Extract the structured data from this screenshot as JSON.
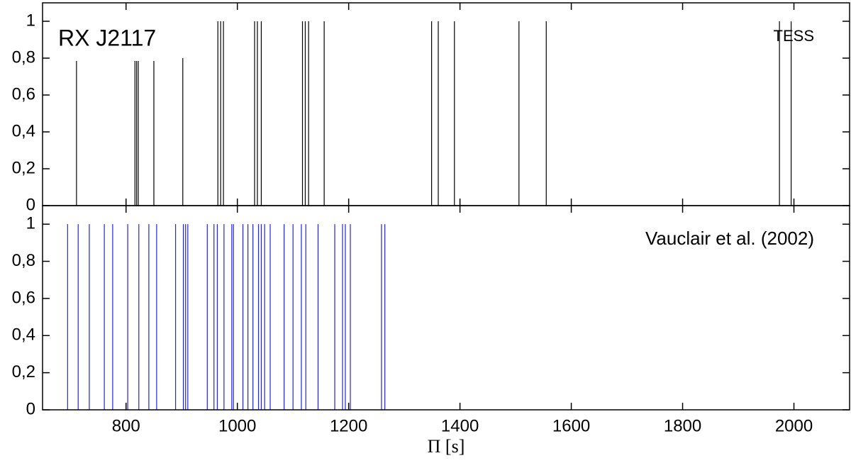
{
  "chart_data": [
    {
      "type": "stem",
      "panel_label": "RX J2117",
      "source": "TESS",
      "x": [
        711,
        816,
        819,
        822,
        850,
        902,
        965,
        970,
        975,
        1031,
        1036,
        1043,
        1117,
        1122,
        1128,
        1156,
        1349,
        1361,
        1390,
        1506,
        1555,
        1974,
        1995
      ],
      "values": [
        0.8,
        0.8,
        0.8,
        0.8,
        0.8,
        0.8,
        1,
        1,
        1,
        1,
        1,
        1,
        1,
        1,
        1,
        1,
        1,
        1,
        1,
        1,
        1,
        1,
        1
      ],
      "color": "#000000",
      "xlim": [
        650,
        2100
      ],
      "ylim": [
        0,
        1.1
      ],
      "xticks": [
        800,
        1000,
        1200,
        1400,
        1600,
        1800,
        2000
      ],
      "yticks": [
        0,
        {
          "value": 0.2,
          "label": "0,2"
        },
        {
          "value": 0.4,
          "label": "0,4"
        },
        {
          "value": 0.6,
          "label": "0,6"
        },
        {
          "value": 0.8,
          "label": "0,8"
        },
        1
      ]
    },
    {
      "type": "stem",
      "source": "Vauclair et al. (2002)",
      "xlabel": "Π [s]",
      "x": [
        695,
        714,
        734,
        761,
        776,
        803,
        823,
        841,
        855,
        889,
        903,
        907,
        911,
        946,
        958,
        964,
        976,
        990,
        993,
        1010,
        1019,
        1028,
        1038,
        1043,
        1049,
        1059,
        1084,
        1100,
        1115,
        1123,
        1145,
        1175,
        1189,
        1194,
        1203,
        1259,
        1265
      ],
      "values": [
        1,
        1,
        1,
        1,
        1,
        1,
        1,
        1,
        1,
        1,
        1,
        1,
        1,
        1,
        1,
        1,
        1,
        1,
        1,
        1,
        1,
        1,
        1,
        1,
        1,
        1,
        1,
        1,
        1,
        1,
        1,
        1,
        1,
        1,
        1,
        1,
        1
      ],
      "color": "#2424d8",
      "xlim": [
        650,
        2100
      ],
      "ylim": [
        0,
        1.1
      ],
      "xticks": [
        800,
        1000,
        1200,
        1400,
        1600,
        1800,
        2000
      ],
      "yticks": [
        0,
        {
          "value": 0.2,
          "label": "0,2"
        },
        {
          "value": 0.4,
          "label": "0,4"
        },
        {
          "value": 0.6,
          "label": "0,6"
        },
        {
          "value": 0.8,
          "label": "0,8"
        },
        1
      ]
    }
  ]
}
